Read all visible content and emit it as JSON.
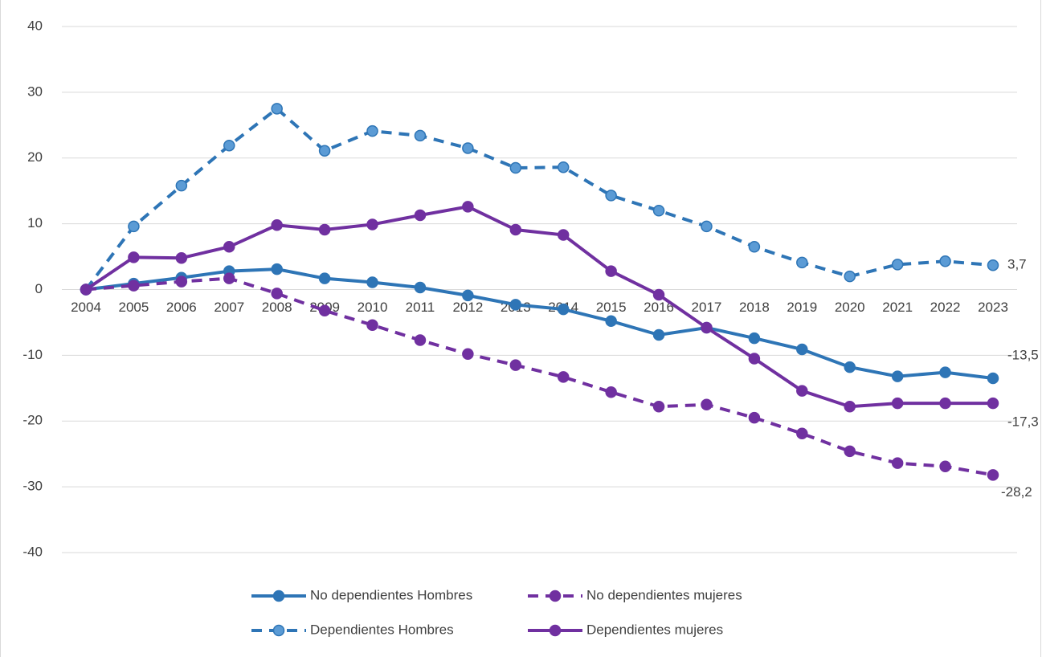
{
  "chart_data": {
    "type": "line",
    "categories": [
      "2004",
      "2005",
      "2006",
      "2007",
      "2008",
      "2009",
      "2010",
      "2011",
      "2012",
      "2013",
      "2014",
      "2015",
      "2016",
      "2017",
      "2018",
      "2019",
      "2020",
      "2021",
      "2022",
      "2023"
    ],
    "ylim": [
      -40,
      40
    ],
    "yticks": [
      -40,
      -30,
      -20,
      -10,
      0,
      10,
      20,
      30,
      40
    ],
    "grid": true,
    "series": [
      {
        "name": "No dependientes Hombres",
        "color": "#2e75b6",
        "dashed": false,
        "values": [
          0,
          0.9,
          1.8,
          2.8,
          3.1,
          1.7,
          1.1,
          0.3,
          -0.9,
          -2.3,
          -3.0,
          -4.8,
          -6.9,
          -5.8,
          -7.4,
          -9.1,
          -11.8,
          -13.2,
          -12.6,
          -13.5
        ],
        "value_labels": [
          null,
          null,
          null,
          null,
          null,
          null,
          null,
          null,
          null,
          null,
          null,
          null,
          null,
          null,
          null,
          null,
          null,
          null,
          null,
          "-13,5"
        ]
      },
      {
        "name": "No dependientes mujeres",
        "color": "#7030a0",
        "dashed": true,
        "values": [
          0,
          0.6,
          1.2,
          1.7,
          -0.6,
          -3.2,
          -5.4,
          -7.7,
          -9.8,
          -11.5,
          -13.3,
          -15.6,
          -17.8,
          -17.5,
          -19.5,
          -21.9,
          -24.6,
          -26.4,
          -26.9,
          -28.2
        ],
        "value_labels": [
          null,
          null,
          null,
          null,
          null,
          null,
          null,
          null,
          null,
          null,
          null,
          null,
          null,
          null,
          null,
          null,
          null,
          null,
          null,
          "-28,2"
        ]
      },
      {
        "name": "Dependientes Hombres",
        "color": "#2e75b6",
        "marker_color": "#5b9bd5",
        "dashed": true,
        "values": [
          0,
          9.6,
          15.8,
          21.9,
          27.5,
          21.1,
          24.1,
          23.4,
          21.5,
          18.5,
          18.6,
          14.3,
          12.0,
          9.6,
          6.5,
          4.1,
          2.0,
          3.8,
          4.3,
          3.7
        ],
        "value_labels": [
          null,
          null,
          null,
          null,
          null,
          null,
          null,
          null,
          null,
          null,
          null,
          null,
          null,
          null,
          null,
          null,
          null,
          null,
          null,
          "3,7"
        ]
      },
      {
        "name": "Dependientes mujeres",
        "color": "#7030a0",
        "dashed": false,
        "values": [
          0,
          4.9,
          4.8,
          6.5,
          9.8,
          9.1,
          9.9,
          11.3,
          12.6,
          9.1,
          8.3,
          2.8,
          -0.8,
          -5.8,
          -10.5,
          -15.4,
          -17.8,
          -17.3,
          -17.3,
          -17.3
        ],
        "value_labels": [
          null,
          null,
          null,
          null,
          null,
          null,
          null,
          null,
          null,
          null,
          null,
          null,
          null,
          null,
          null,
          null,
          null,
          null,
          null,
          "-17,3"
        ]
      }
    ]
  }
}
